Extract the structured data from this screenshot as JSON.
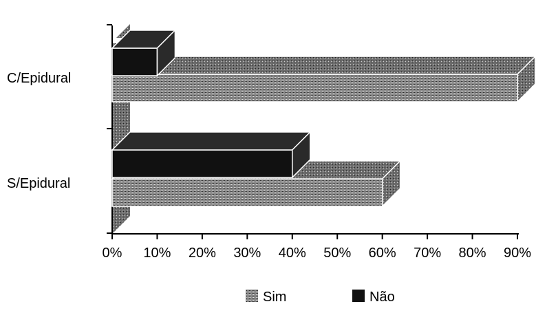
{
  "chart_data": {
    "type": "bar",
    "orientation": "horizontal",
    "style": "3d",
    "categories": [
      "C/Epidural",
      "S/Epidural"
    ],
    "series": [
      {
        "name": "Sim",
        "values": [
          90,
          60
        ],
        "color": "#8c8c8c",
        "pattern": "dotted-gray"
      },
      {
        "name": "Não",
        "values": [
          10,
          40
        ],
        "color": "#111111"
      }
    ],
    "xticks": [
      "0%",
      "10%",
      "20%",
      "30%",
      "40%",
      "50%",
      "60%",
      "70%",
      "80%",
      "90%"
    ],
    "xlim": [
      0,
      90
    ],
    "unit": "%",
    "grid": false,
    "legend_position": "bottom"
  }
}
